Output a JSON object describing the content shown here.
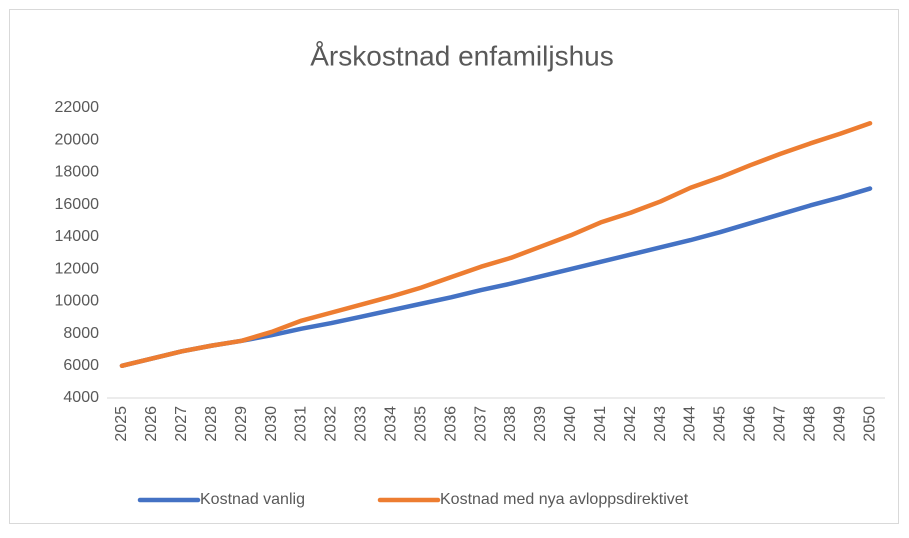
{
  "chart_data": {
    "type": "line",
    "title": "Årskostnad enfamiljshus",
    "categories": [
      "2025",
      "2026",
      "2027",
      "2028",
      "2029",
      "2030",
      "2031",
      "2032",
      "2033",
      "2034",
      "2035",
      "2036",
      "2037",
      "2038",
      "2039",
      "2040",
      "2041",
      "2042",
      "2043",
      "2044",
      "2045",
      "2046",
      "2047",
      "2048",
      "2049",
      "2050"
    ],
    "series": [
      {
        "name": "Kostnad vanlig",
        "color": "#4472c4",
        "values": [
          6000,
          6450,
          6900,
          7250,
          7550,
          7900,
          8300,
          8650,
          9050,
          9450,
          9850,
          10250,
          10700,
          11100,
          11550,
          12000,
          12450,
          12900,
          13350,
          13800,
          14300,
          14850,
          15400,
          15950,
          16450,
          17000
        ]
      },
      {
        "name": "Kostnad med nya avloppsdirektivet",
        "color": "#ed7d31",
        "values": [
          6000,
          6450,
          6900,
          7250,
          7550,
          8100,
          8800,
          9300,
          9800,
          10300,
          10850,
          11500,
          12150,
          12700,
          13400,
          14100,
          14900,
          15500,
          16200,
          17050,
          17700,
          18450,
          19150,
          19800,
          20400,
          21050
        ]
      }
    ],
    "ylim": [
      4000,
      22000
    ],
    "yticks": [
      4000,
      6000,
      8000,
      10000,
      12000,
      14000,
      16000,
      18000,
      20000,
      22000
    ],
    "grid": false,
    "legend": "bottom"
  }
}
